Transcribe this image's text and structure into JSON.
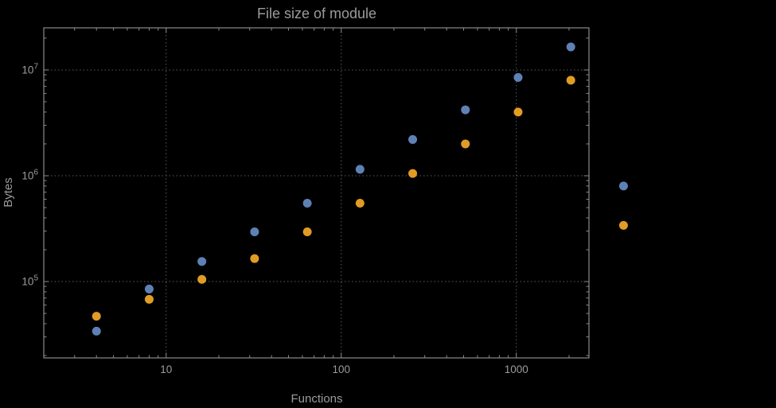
{
  "window": {
    "background": "#000000"
  },
  "chart_data": {
    "type": "scatter",
    "title": "File size of module",
    "xlabel": "Functions",
    "ylabel": "Bytes",
    "x_scale": "log",
    "y_scale": "log",
    "xlim": [
      2,
      2600
    ],
    "ylim": [
      19000,
      25000000
    ],
    "grid": "dotted",
    "legend": false,
    "x_ticks": [
      {
        "value": 10,
        "label": "10"
      },
      {
        "value": 100,
        "label": "100"
      },
      {
        "value": 1000,
        "label": "1000"
      }
    ],
    "y_ticks": [
      {
        "value": 100000,
        "base": "10",
        "exp": "5"
      },
      {
        "value": 1000000,
        "base": "10",
        "exp": "6"
      },
      {
        "value": 10000000,
        "base": "10",
        "exp": "7"
      }
    ],
    "x": [
      4,
      8,
      16,
      32,
      64,
      128,
      256,
      512,
      1024,
      2048,
      4096
    ],
    "series": [
      {
        "name": "blue",
        "color": "#5E81B5",
        "values": [
          34000,
          85000,
          155000,
          295000,
          550000,
          1150000,
          2200000,
          4200000,
          8500000,
          16500000,
          800000
        ]
      },
      {
        "name": "orange",
        "color": "#E19C24",
        "values": [
          47000,
          68000,
          105000,
          165000,
          295000,
          550000,
          1050000,
          2000000,
          4000000,
          8000000,
          340000
        ]
      }
    ],
    "colors": {
      "background": "#000000",
      "frame": "#8a8a8a",
      "grid": "#5c5c5c",
      "text": "#9b9b9b",
      "series1": "#5E81B5",
      "series2": "#E19C24"
    },
    "marker_radius": 5.5
  }
}
